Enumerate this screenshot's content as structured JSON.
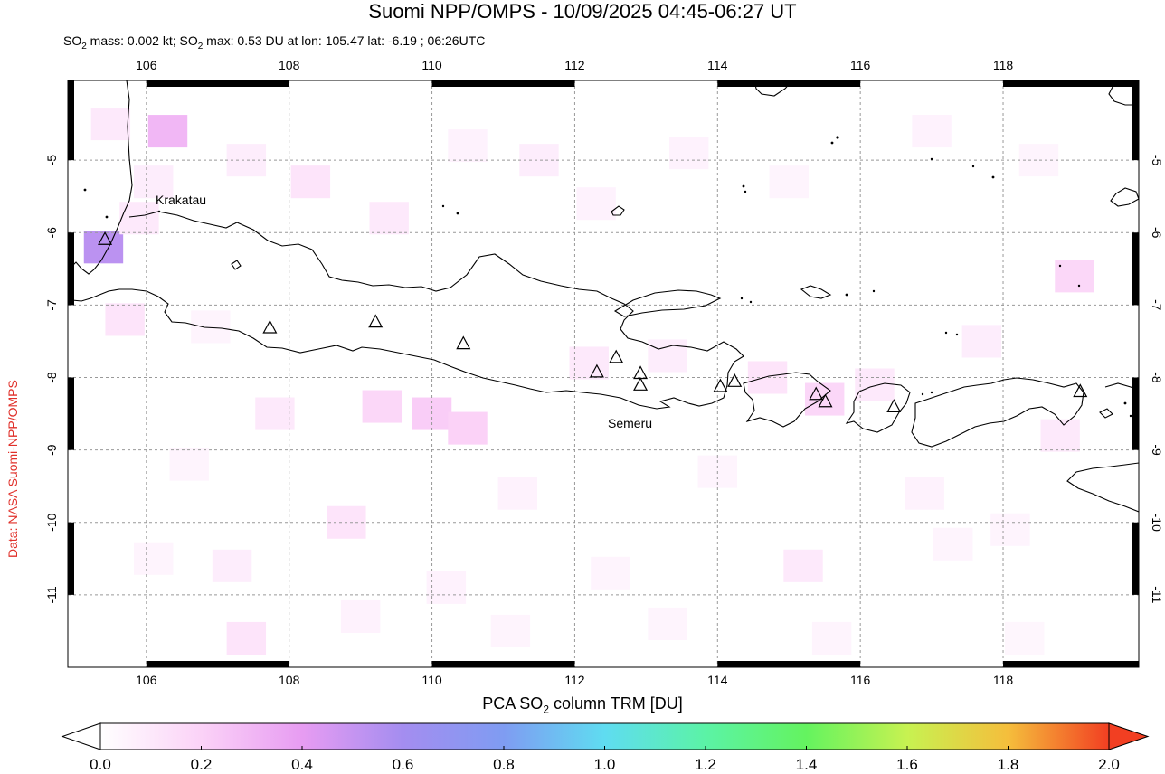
{
  "title": "Suomi NPP/OMPS - 10/09/2025 04:45-06:27 UT",
  "subtitle": {
    "part1": "SO",
    "sub1": "2",
    "part2": " mass: 0.002 kt; SO",
    "sub2": "2",
    "part3": " max: 0.53 DU at lon: 105.47 lat: -6.19 ; 06:26UTC"
  },
  "credit": "Data: NASA Suomi-NPP/OMPS",
  "map": {
    "lon_range": [
      104.9,
      119.9
    ],
    "lat_range": [
      -12.0,
      -3.9
    ],
    "lon_ticks": [
      "106",
      "108",
      "110",
      "112",
      "114",
      "116",
      "118"
    ],
    "lat_ticks": [
      "-5",
      "-6",
      "-7",
      "-8",
      "-9",
      "-10",
      "-11"
    ],
    "grid": "dashed",
    "volcano_labels": [
      {
        "name": "Krakatau",
        "lon": 105.42,
        "lat": -6.1
      },
      {
        "name": "Semeru",
        "lon": 112.92,
        "lat": -8.11
      }
    ],
    "volcanoes": [
      {
        "lon": 105.42,
        "lat": -6.1
      },
      {
        "lon": 107.73,
        "lat": -7.32
      },
      {
        "lon": 109.21,
        "lat": -7.24
      },
      {
        "lon": 110.44,
        "lat": -7.54
      },
      {
        "lon": 112.31,
        "lat": -7.93
      },
      {
        "lon": 112.58,
        "lat": -7.73
      },
      {
        "lon": 112.92,
        "lat": -7.95
      },
      {
        "lon": 112.92,
        "lat": -8.11
      },
      {
        "lon": 114.04,
        "lat": -8.13
      },
      {
        "lon": 114.24,
        "lat": -8.06
      },
      {
        "lon": 115.38,
        "lat": -8.24
      },
      {
        "lon": 115.51,
        "lat": -8.34
      },
      {
        "lon": 116.47,
        "lat": -8.41
      },
      {
        "lon": 119.08,
        "lat": -8.2
      }
    ],
    "so2_cells": [
      {
        "lon": 105.4,
        "lat": -6.2,
        "du": 0.53
      },
      {
        "lon": 105.9,
        "lat": -5.8,
        "du": 0.1
      },
      {
        "lon": 106.3,
        "lat": -4.6,
        "du": 0.3
      },
      {
        "lon": 105.5,
        "lat": -4.5,
        "du": 0.1
      },
      {
        "lon": 106.1,
        "lat": -5.3,
        "du": 0.08
      },
      {
        "lon": 107.4,
        "lat": -5.0,
        "du": 0.08
      },
      {
        "lon": 108.3,
        "lat": -5.3,
        "du": 0.12
      },
      {
        "lon": 109.4,
        "lat": -5.8,
        "du": 0.1
      },
      {
        "lon": 110.5,
        "lat": -4.8,
        "du": 0.06
      },
      {
        "lon": 111.5,
        "lat": -5.0,
        "du": 0.08
      },
      {
        "lon": 112.3,
        "lat": -5.6,
        "du": 0.06
      },
      {
        "lon": 113.6,
        "lat": -4.9,
        "du": 0.06
      },
      {
        "lon": 115.0,
        "lat": -5.3,
        "du": 0.05
      },
      {
        "lon": 117.0,
        "lat": -4.6,
        "du": 0.06
      },
      {
        "lon": 118.5,
        "lat": -5.0,
        "du": 0.05
      },
      {
        "lon": 119.0,
        "lat": -6.6,
        "du": 0.18
      },
      {
        "lon": 105.7,
        "lat": -7.2,
        "du": 0.12
      },
      {
        "lon": 106.9,
        "lat": -7.3,
        "du": 0.05
      },
      {
        "lon": 110.0,
        "lat": -8.5,
        "du": 0.22
      },
      {
        "lon": 109.3,
        "lat": -8.4,
        "du": 0.18
      },
      {
        "lon": 110.5,
        "lat": -8.7,
        "du": 0.2
      },
      {
        "lon": 107.8,
        "lat": -8.5,
        "du": 0.1
      },
      {
        "lon": 112.2,
        "lat": -7.8,
        "du": 0.1
      },
      {
        "lon": 113.3,
        "lat": -7.7,
        "du": 0.08
      },
      {
        "lon": 114.7,
        "lat": -8.0,
        "du": 0.12
      },
      {
        "lon": 115.5,
        "lat": -8.3,
        "du": 0.18
      },
      {
        "lon": 116.2,
        "lat": -8.1,
        "du": 0.1
      },
      {
        "lon": 117.7,
        "lat": -7.5,
        "du": 0.08
      },
      {
        "lon": 118.8,
        "lat": -8.8,
        "du": 0.1
      },
      {
        "lon": 106.6,
        "lat": -9.2,
        "du": 0.05
      },
      {
        "lon": 108.8,
        "lat": -10.0,
        "du": 0.12
      },
      {
        "lon": 111.2,
        "lat": -9.6,
        "du": 0.06
      },
      {
        "lon": 114.0,
        "lat": -9.3,
        "du": 0.05
      },
      {
        "lon": 116.9,
        "lat": -9.6,
        "du": 0.06
      },
      {
        "lon": 118.1,
        "lat": -10.1,
        "du": 0.05
      },
      {
        "lon": 106.1,
        "lat": -10.5,
        "du": 0.05
      },
      {
        "lon": 107.2,
        "lat": -10.6,
        "du": 0.08
      },
      {
        "lon": 110.2,
        "lat": -10.9,
        "du": 0.06
      },
      {
        "lon": 112.5,
        "lat": -10.7,
        "du": 0.05
      },
      {
        "lon": 115.2,
        "lat": -10.6,
        "du": 0.1
      },
      {
        "lon": 117.3,
        "lat": -10.3,
        "du": 0.05
      },
      {
        "lon": 107.4,
        "lat": -11.6,
        "du": 0.12
      },
      {
        "lon": 109.0,
        "lat": -11.3,
        "du": 0.06
      },
      {
        "lon": 111.1,
        "lat": -11.5,
        "du": 0.05
      },
      {
        "lon": 113.3,
        "lat": -11.4,
        "du": 0.05
      },
      {
        "lon": 115.6,
        "lat": -11.6,
        "du": 0.05
      },
      {
        "lon": 118.3,
        "lat": -11.6,
        "du": 0.04
      }
    ],
    "coast_color": "#000000",
    "grid_color": "#999999"
  },
  "colorbar": {
    "title_part1": "PCA SO",
    "title_sub": "2",
    "title_part2": " column TRM [DU]",
    "ticks": [
      "0.0",
      "0.2",
      "0.4",
      "0.6",
      "0.8",
      "1.0",
      "1.2",
      "1.4",
      "1.6",
      "1.8",
      "2.0"
    ],
    "range": [
      0.0,
      2.0
    ],
    "stops": [
      "#ffffff",
      "#fbd2f7",
      "#e79cf2",
      "#a48df0",
      "#7f9cf2",
      "#5fdcf1",
      "#5bf3a6",
      "#64f35f",
      "#c7f251",
      "#f5be3c",
      "#f23f22"
    ]
  }
}
